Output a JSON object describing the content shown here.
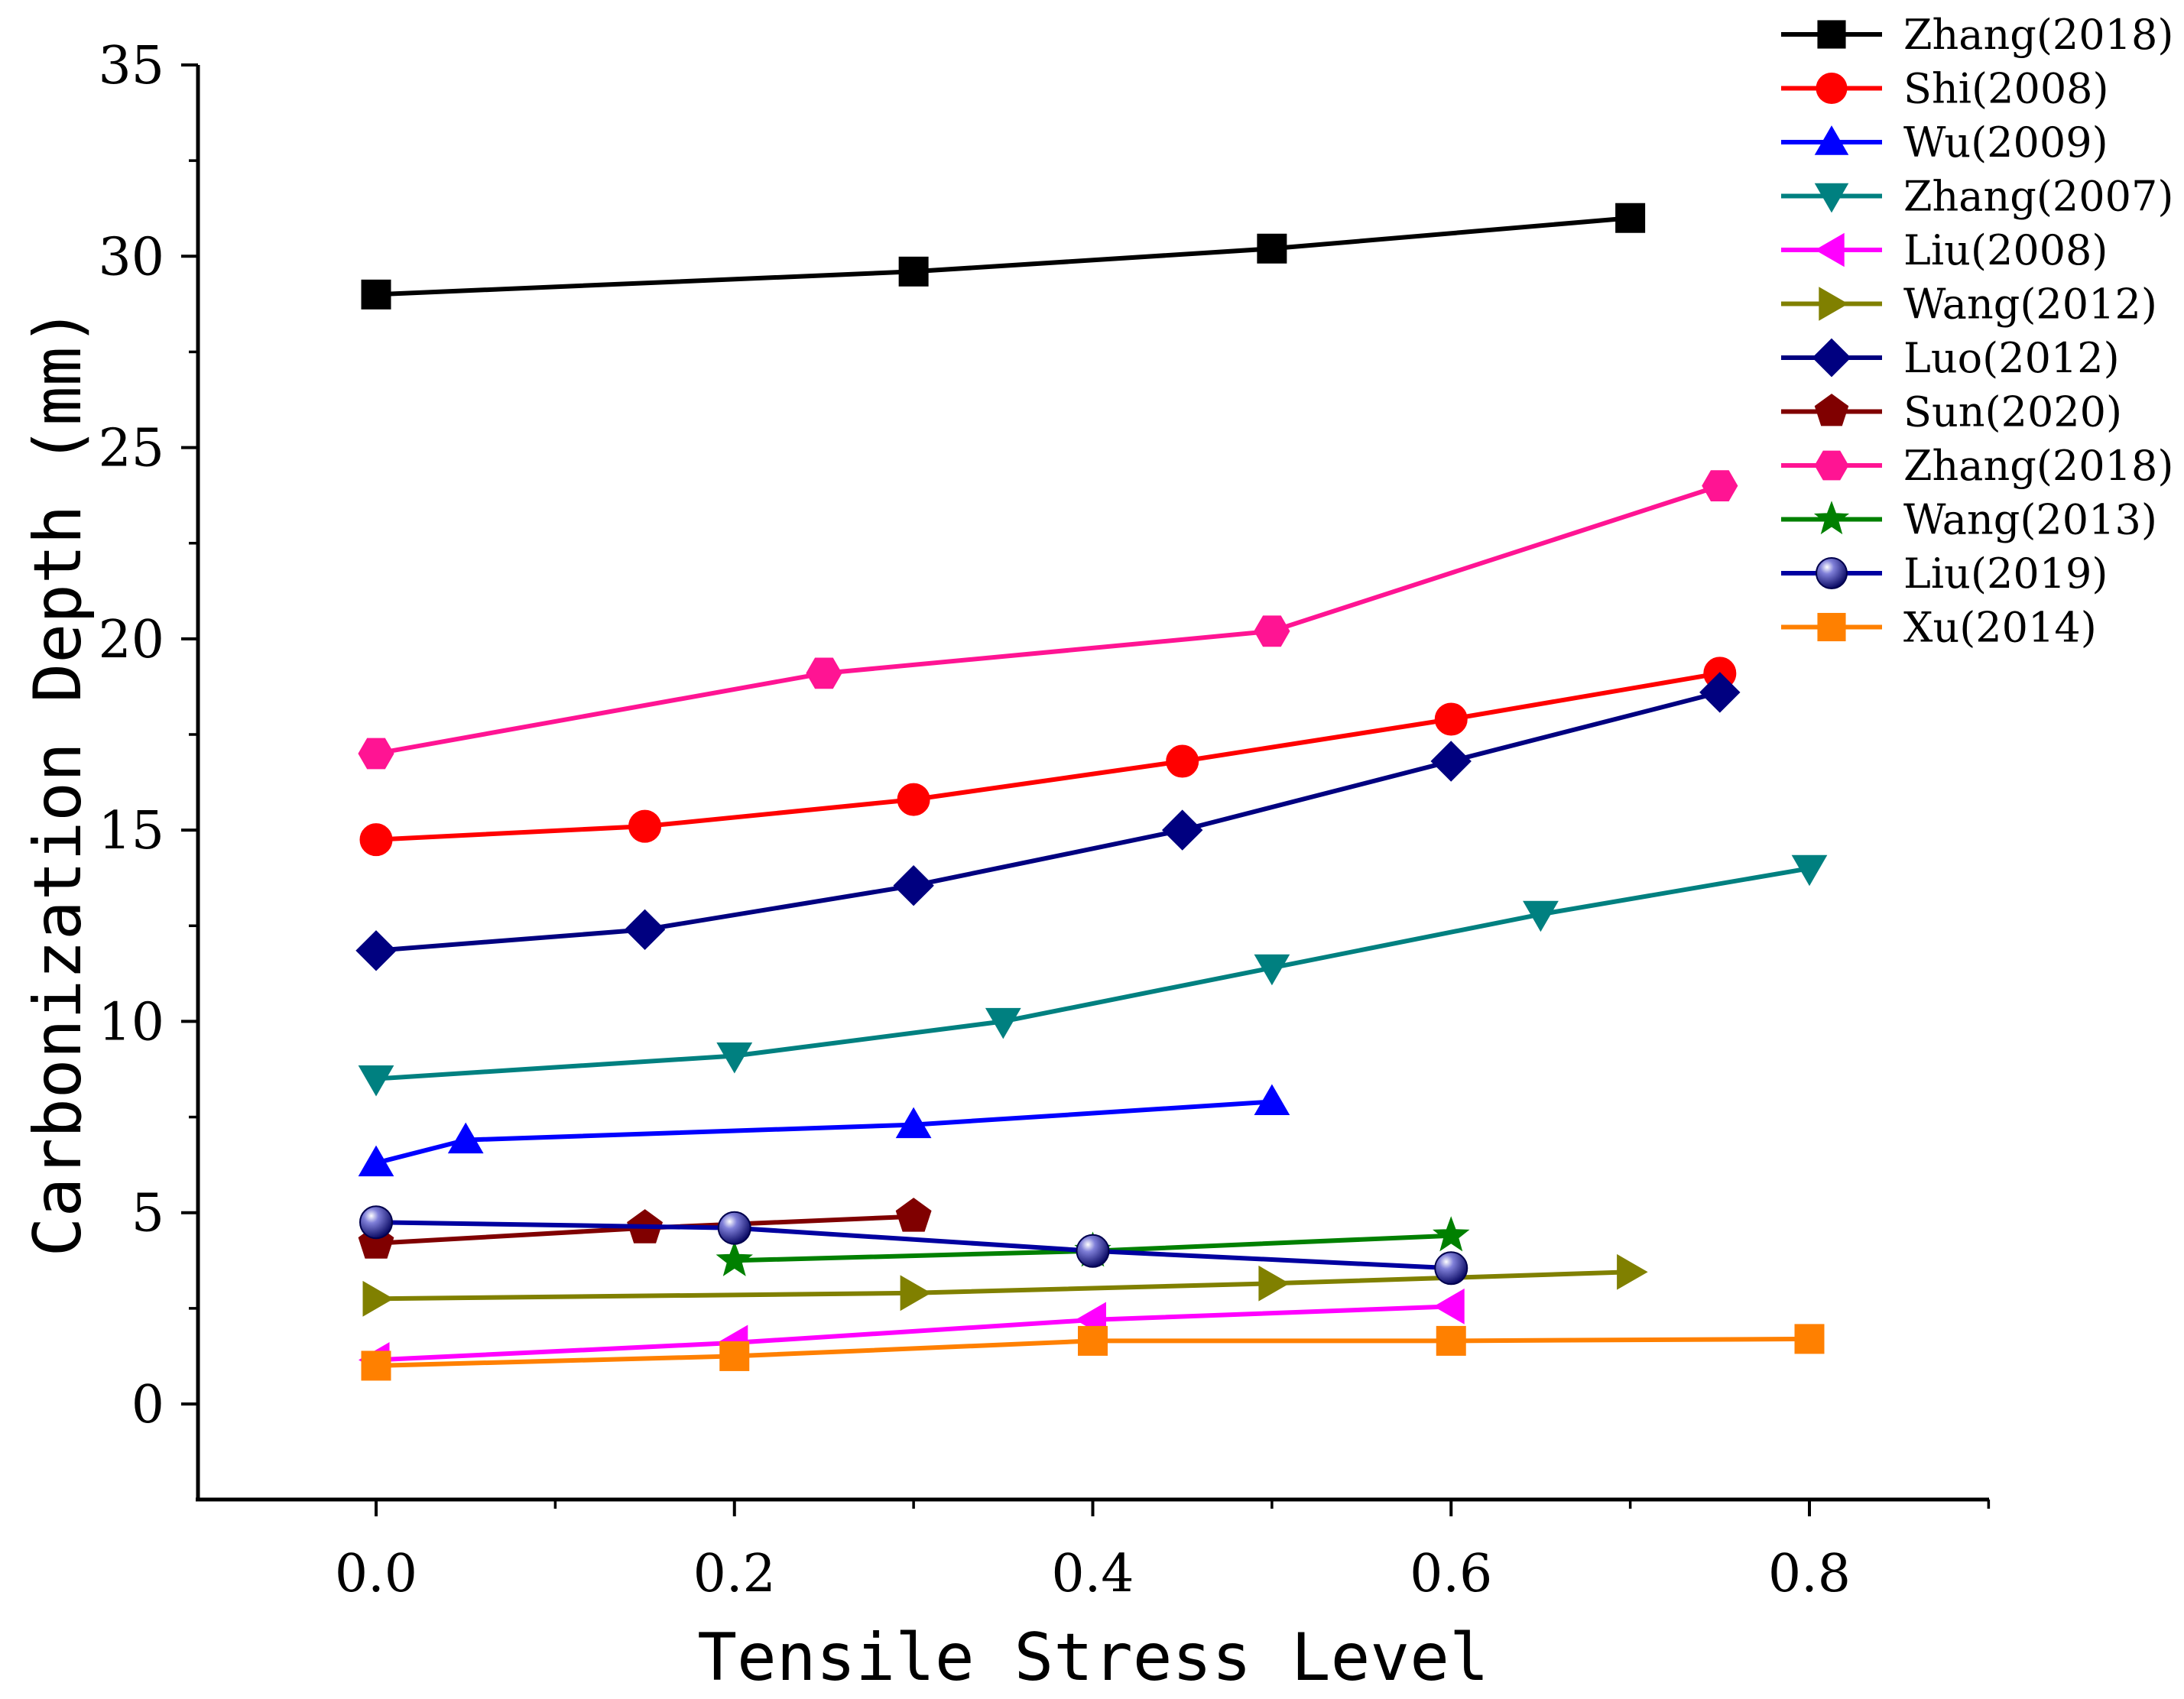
{
  "chart_data": {
    "type": "line",
    "xlabel": "Tensile Stress Level",
    "ylabel": "Carbonization Depth (mm)",
    "xlim": [
      -0.1,
      0.9
    ],
    "ylim": [
      -2.5,
      35
    ],
    "x_ticks": [
      0.0,
      0.2,
      0.4,
      0.6,
      0.8
    ],
    "x_tick_labels": [
      "0.0",
      "0.2",
      "0.4",
      "0.6",
      "0.8"
    ],
    "y_ticks": [
      0,
      5,
      10,
      15,
      20,
      25,
      30,
      35
    ],
    "y_tick_labels": [
      "0",
      "5",
      "10",
      "15",
      "20",
      "25",
      "30",
      "35"
    ],
    "legend_position": "top-right",
    "series": [
      {
        "name": "Zhang(2018)",
        "color": "#000000",
        "marker": "square",
        "x": [
          0.0,
          0.3,
          0.5,
          0.7
        ],
        "y": [
          29.0,
          29.6,
          30.2,
          31.0
        ]
      },
      {
        "name": "Shi(2008)",
        "color": "#ff0000",
        "marker": "circle",
        "x": [
          0.0,
          0.15,
          0.3,
          0.45,
          0.6,
          0.75
        ],
        "y": [
          14.75,
          15.1,
          15.8,
          16.8,
          17.9,
          19.1
        ]
      },
      {
        "name": "Wu(2009)",
        "color": "#0000ff",
        "marker": "triangle-up",
        "x": [
          0.0,
          0.05,
          0.3,
          0.5
        ],
        "y": [
          6.3,
          6.9,
          7.3,
          7.9
        ]
      },
      {
        "name": "Zhang(2007)",
        "color": "#008080",
        "marker": "triangle-down",
        "x": [
          0.0,
          0.2,
          0.35,
          0.5,
          0.65,
          0.8
        ],
        "y": [
          8.5,
          9.1,
          10.0,
          11.4,
          12.8,
          14.0
        ]
      },
      {
        "name": "Liu(2008)",
        "color": "#ff00ff",
        "marker": "triangle-left",
        "x": [
          0.0,
          0.2,
          0.4,
          0.6
        ],
        "y": [
          1.15,
          1.6,
          2.2,
          2.55
        ]
      },
      {
        "name": "Wang(2012)",
        "color": "#808000",
        "marker": "triangle-right",
        "x": [
          0.0,
          0.3,
          0.5,
          0.7
        ],
        "y": [
          2.75,
          2.9,
          3.15,
          3.45
        ]
      },
      {
        "name": "Luo(2012)",
        "color": "#000080",
        "marker": "diamond",
        "x": [
          0.0,
          0.15,
          0.3,
          0.45,
          0.6,
          0.75
        ],
        "y": [
          11.85,
          12.4,
          13.55,
          15.0,
          16.8,
          18.6
        ]
      },
      {
        "name": "Sun(2020)",
        "color": "#800000",
        "marker": "pentagon",
        "x": [
          0.0,
          0.15,
          0.3
        ],
        "y": [
          4.2,
          4.6,
          4.9
        ]
      },
      {
        "name": "Zhang(2018)",
        "color": "#ff1493",
        "marker": "hexagon",
        "x": [
          0.0,
          0.25,
          0.5,
          0.75
        ],
        "y": [
          17.0,
          19.1,
          20.2,
          24.0
        ]
      },
      {
        "name": "Wang(2013)",
        "color": "#008000",
        "marker": "star",
        "x": [
          0.2,
          0.4,
          0.6
        ],
        "y": [
          3.75,
          4.0,
          4.4
        ]
      },
      {
        "name": "Liu(2019)",
        "color": "#0000a0",
        "marker": "sphere",
        "x": [
          0.0,
          0.2,
          0.4,
          0.6
        ],
        "y": [
          4.75,
          4.6,
          4.0,
          3.55
        ]
      },
      {
        "name": "Xu(2014)",
        "color": "#ff8000",
        "marker": "square",
        "x": [
          0.0,
          0.2,
          0.4,
          0.6,
          0.8
        ],
        "y": [
          1.0,
          1.25,
          1.65,
          1.65,
          1.7
        ]
      }
    ]
  }
}
